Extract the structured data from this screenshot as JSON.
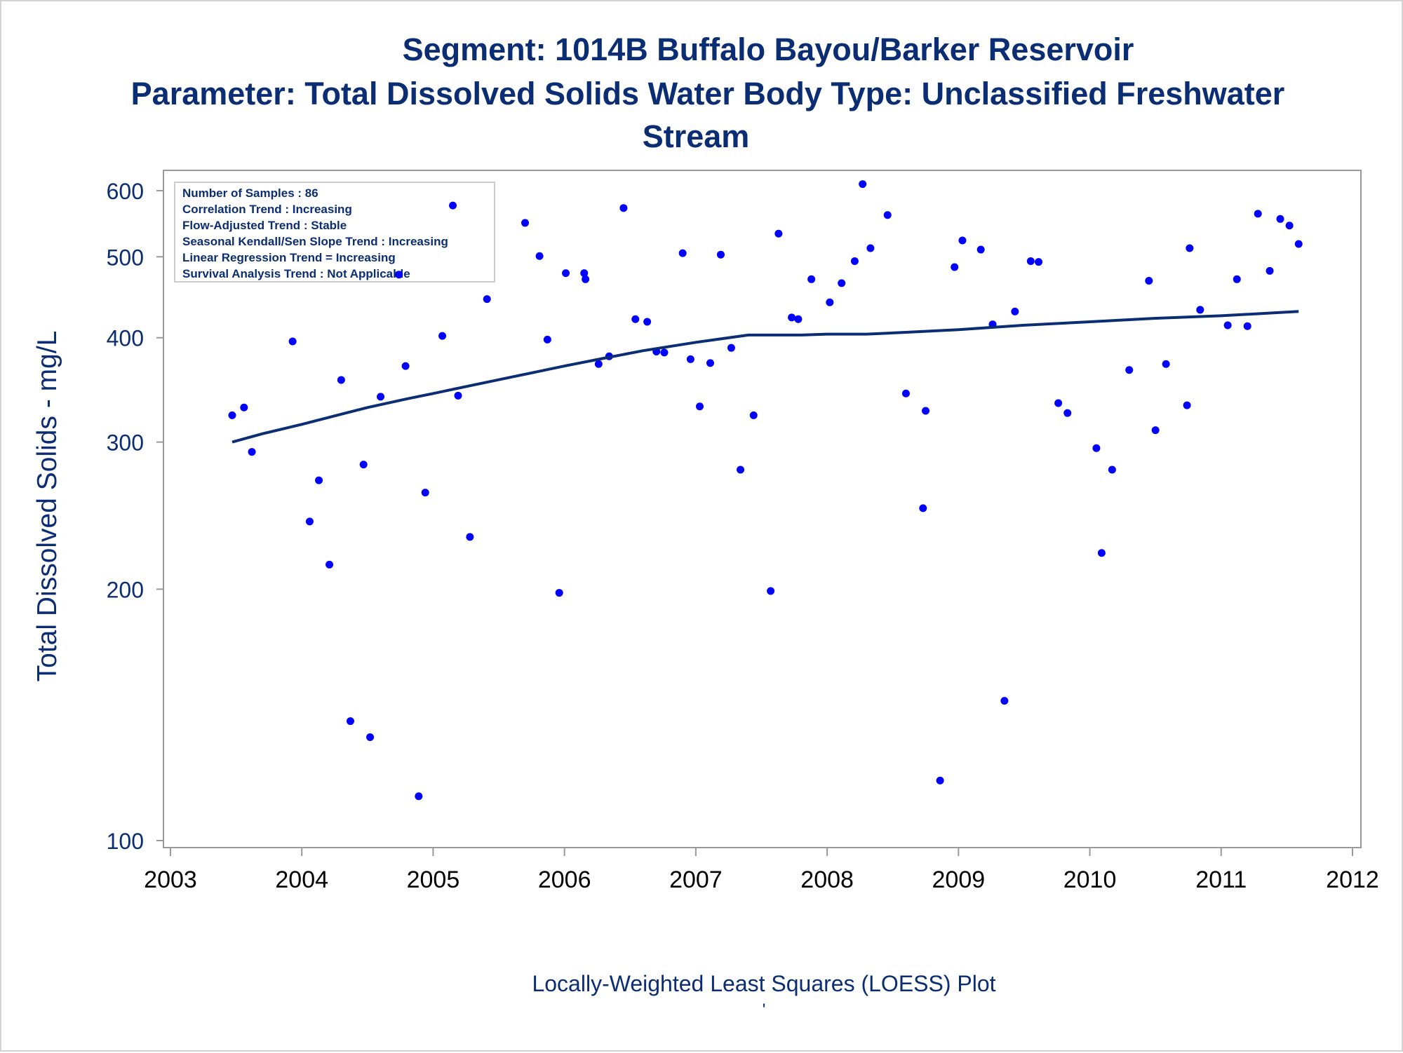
{
  "chart_data": {
    "type": "scatter",
    "title": "Segment: 1014B  Buffalo Bayou/Barker Reservoir",
    "subtitle_lines": [
      "Parameter: Total Dissolved Solids   Water Body Type: Unclassified Freshwater",
      "Stream"
    ],
    "xlabel": "Locally-Weighted Least Squares (LOESS) Plot",
    "footnote": "'",
    "ylabel": "Total Dissolved Solids - mg/L",
    "y_scale": "log",
    "xlim": [
      2003,
      2012
    ],
    "ylim": [
      100,
      620
    ],
    "x_ticks": [
      2003,
      2004,
      2005,
      2006,
      2007,
      2008,
      2009,
      2010,
      2011,
      2012
    ],
    "y_ticks": [
      100,
      200,
      300,
      400,
      500,
      600
    ],
    "grid": false,
    "stats_box": {
      "position": "top-left",
      "lines": [
        "Number of Samples : 86",
        "Correlation Trend : Increasing",
        "Flow-Adjusted Trend : Stable",
        "Seasonal Kendall/Sen Slope Trend : Increasing",
        "Linear Regression Trend = Increasing",
        "Survival Analysis Trend : Not Applicable"
      ]
    },
    "colors": {
      "points": "#0000ff",
      "loess": "#0b2d73",
      "text": "#0b2d73",
      "axis": "#999999"
    },
    "series": [
      {
        "kind": "points",
        "points": [
          [
            2003.47,
            323
          ],
          [
            2003.56,
            330
          ],
          [
            2003.62,
            292
          ],
          [
            2003.93,
            396
          ],
          [
            2004.06,
            241
          ],
          [
            2004.13,
            270
          ],
          [
            2004.21,
            214
          ],
          [
            2004.3,
            356
          ],
          [
            2004.37,
            139
          ],
          [
            2004.47,
            282
          ],
          [
            2004.52,
            133
          ],
          [
            2004.6,
            340
          ],
          [
            2004.74,
            476
          ],
          [
            2004.79,
            370
          ],
          [
            2004.89,
            113
          ],
          [
            2004.94,
            261
          ],
          [
            2005.07,
            402
          ],
          [
            2005.15,
            576
          ],
          [
            2005.19,
            341
          ],
          [
            2005.28,
            231
          ],
          [
            2005.41,
            445
          ],
          [
            2005.7,
            549
          ],
          [
            2005.81,
            501
          ],
          [
            2005.87,
            398
          ],
          [
            2005.96,
            198
          ],
          [
            2006.01,
            478
          ],
          [
            2006.15,
            478
          ],
          [
            2006.16,
            470
          ],
          [
            2006.26,
            372
          ],
          [
            2006.34,
            380
          ],
          [
            2006.45,
            572
          ],
          [
            2006.54,
            421
          ],
          [
            2006.63,
            418
          ],
          [
            2006.7,
            385
          ],
          [
            2006.76,
            384
          ],
          [
            2006.9,
            505
          ],
          [
            2006.96,
            377
          ],
          [
            2007.03,
            331
          ],
          [
            2007.11,
            373
          ],
          [
            2007.19,
            503
          ],
          [
            2007.27,
            389
          ],
          [
            2007.34,
            278
          ],
          [
            2007.44,
            323
          ],
          [
            2007.57,
            199
          ],
          [
            2007.63,
            533
          ],
          [
            2007.73,
            423
          ],
          [
            2007.78,
            421
          ],
          [
            2007.88,
            470
          ],
          [
            2008.02,
            441
          ],
          [
            2008.11,
            465
          ],
          [
            2008.21,
            494
          ],
          [
            2008.27,
            611
          ],
          [
            2008.33,
            512
          ],
          [
            2008.46,
            561
          ],
          [
            2008.6,
            343
          ],
          [
            2008.73,
            250
          ],
          [
            2008.75,
            327
          ],
          [
            2008.86,
            118
          ],
          [
            2008.97,
            486
          ],
          [
            2009.03,
            523
          ],
          [
            2009.17,
            510
          ],
          [
            2009.26,
            415
          ],
          [
            2009.35,
            147
          ],
          [
            2009.43,
            430
          ],
          [
            2009.55,
            494
          ],
          [
            2009.61,
            493
          ],
          [
            2009.76,
            334
          ],
          [
            2009.83,
            325
          ],
          [
            2010.05,
            295
          ],
          [
            2010.09,
            221
          ],
          [
            2010.17,
            278
          ],
          [
            2010.3,
            366
          ],
          [
            2010.45,
            468
          ],
          [
            2010.5,
            310
          ],
          [
            2010.58,
            372
          ],
          [
            2010.74,
            332
          ],
          [
            2010.76,
            512
          ],
          [
            2010.84,
            432
          ],
          [
            2011.05,
            414
          ],
          [
            2011.12,
            470
          ],
          [
            2011.2,
            413
          ],
          [
            2011.28,
            563
          ],
          [
            2011.37,
            481
          ],
          [
            2011.45,
            555
          ],
          [
            2011.52,
            545
          ],
          [
            2011.59,
            518
          ]
        ]
      },
      {
        "kind": "loess",
        "points": [
          [
            2003.47,
            300
          ],
          [
            2003.7,
            307
          ],
          [
            2004.0,
            315
          ],
          [
            2004.3,
            324
          ],
          [
            2004.5,
            330
          ],
          [
            2004.8,
            338
          ],
          [
            2005.0,
            343
          ],
          [
            2005.3,
            351
          ],
          [
            2005.6,
            359
          ],
          [
            2006.0,
            370
          ],
          [
            2006.3,
            378
          ],
          [
            2006.6,
            386
          ],
          [
            2007.0,
            395
          ],
          [
            2007.4,
            403
          ],
          [
            2007.8,
            403
          ],
          [
            2008.0,
            404
          ],
          [
            2008.3,
            404
          ],
          [
            2008.6,
            406
          ],
          [
            2009.0,
            409
          ],
          [
            2009.5,
            414
          ],
          [
            2010.0,
            418
          ],
          [
            2010.5,
            422
          ],
          [
            2011.0,
            425
          ],
          [
            2011.59,
            430
          ]
        ]
      }
    ]
  }
}
